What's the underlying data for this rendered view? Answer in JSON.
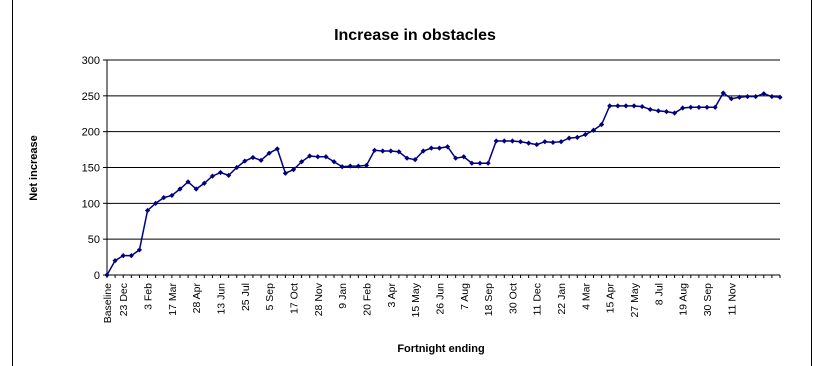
{
  "chart_data": {
    "type": "line",
    "title": "Increase in obstacles",
    "xlabel": "Fortnight ending",
    "ylabel": "Net increase",
    "ylim": [
      0,
      300
    ],
    "yticks": [
      0,
      50,
      100,
      150,
      200,
      250,
      300
    ],
    "grid": "horizontal",
    "legend": "none",
    "series_color": "#000080",
    "tick_labels": [
      {
        "i": 0,
        "label": "Baseline"
      },
      {
        "i": 2,
        "label": "23 Dec"
      },
      {
        "i": 5,
        "label": "3 Feb"
      },
      {
        "i": 8,
        "label": "17 Mar"
      },
      {
        "i": 11,
        "label": "28 Apr"
      },
      {
        "i": 14,
        "label": "13 Jun"
      },
      {
        "i": 17,
        "label": "25 Jul"
      },
      {
        "i": 20,
        "label": "5 Sep"
      },
      {
        "i": 23,
        "label": "17 Oct"
      },
      {
        "i": 26,
        "label": "28 Nov"
      },
      {
        "i": 29,
        "label": "9 Jan"
      },
      {
        "i": 32,
        "label": "20 Feb"
      },
      {
        "i": 35,
        "label": "3 Apr"
      },
      {
        "i": 38,
        "label": "15 May"
      },
      {
        "i": 41,
        "label": "26 Jun"
      },
      {
        "i": 44,
        "label": "7 Aug"
      },
      {
        "i": 47,
        "label": "18 Sep"
      },
      {
        "i": 50,
        "label": "30 Oct"
      },
      {
        "i": 53,
        "label": "11 Dec"
      },
      {
        "i": 56,
        "label": "22 Jan"
      },
      {
        "i": 59,
        "label": "4 Mar"
      },
      {
        "i": 62,
        "label": "15 Apr"
      },
      {
        "i": 65,
        "label": "27 May"
      },
      {
        "i": 68,
        "label": "8 Jul"
      },
      {
        "i": 71,
        "label": "19 Aug"
      },
      {
        "i": 74,
        "label": "30 Sep"
      },
      {
        "i": 77,
        "label": "11 Nov"
      }
    ],
    "values": [
      0,
      20,
      27,
      27,
      35,
      90,
      100,
      108,
      111,
      120,
      130,
      120,
      128,
      138,
      143,
      139,
      150,
      159,
      164,
      160,
      170,
      176,
      142,
      147,
      158,
      166,
      165,
      165,
      158,
      151,
      152,
      152,
      153,
      174,
      173,
      173,
      172,
      163,
      161,
      173,
      177,
      177,
      179,
      163,
      165,
      156,
      156,
      156,
      187,
      187,
      187,
      186,
      184,
      182,
      186,
      185,
      186,
      191,
      192,
      196,
      202,
      210,
      236,
      236,
      236,
      236,
      235,
      231,
      229,
      228,
      226,
      233,
      234,
      234,
      234,
      234,
      254,
      246,
      248,
      249,
      249,
      253,
      249,
      248
    ]
  }
}
